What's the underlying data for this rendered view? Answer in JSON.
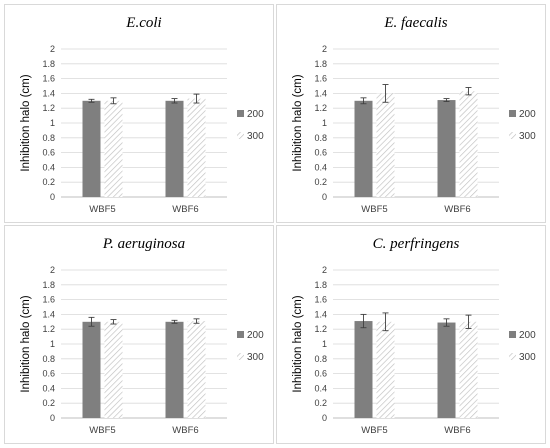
{
  "colors": {
    "s200": "#7f7f7f",
    "s300_hatch": "#bfbfbf",
    "grid": "#d9d9d9",
    "error": "#404040"
  },
  "chart_data": [
    {
      "type": "bar",
      "title": "E.coli",
      "ylabel": "Inhibition halo (cm)",
      "categories": [
        "WBF5",
        "WBF6"
      ],
      "ylim": [
        0,
        2
      ],
      "yticks": [
        "0",
        "0.2",
        "0.4",
        "0.6",
        "0.8",
        "1",
        "1.2",
        "1.4",
        "1.6",
        "1.8",
        "2"
      ],
      "legend_position": "right",
      "grid": true,
      "series": [
        {
          "name": "200",
          "values": [
            1.3,
            1.3
          ],
          "errors": [
            0.02,
            0.03
          ],
          "pattern": "solid"
        },
        {
          "name": "300",
          "values": [
            1.3,
            1.33
          ],
          "errors": [
            0.04,
            0.06
          ],
          "pattern": "hatch"
        }
      ]
    },
    {
      "type": "bar",
      "title": "E. faecalis",
      "ylabel": "Inhibition halo (cm)",
      "categories": [
        "WBF5",
        "WBF6"
      ],
      "ylim": [
        0,
        2
      ],
      "yticks": [
        "0",
        "0.2",
        "0.4",
        "0.6",
        "0.8",
        "1",
        "1.2",
        "1.4",
        "1.6",
        "1.8",
        "2"
      ],
      "legend_position": "right",
      "grid": true,
      "series": [
        {
          "name": "200",
          "values": [
            1.3,
            1.31
          ],
          "errors": [
            0.04,
            0.02
          ],
          "pattern": "solid"
        },
        {
          "name": "300",
          "values": [
            1.4,
            1.43
          ],
          "errors": [
            0.12,
            0.05
          ],
          "pattern": "hatch"
        }
      ]
    },
    {
      "type": "bar",
      "title": "P. aeruginosa",
      "ylabel": "Inhibition halo (cm)",
      "categories": [
        "WBF5",
        "WBF6"
      ],
      "ylim": [
        0,
        2
      ],
      "yticks": [
        "0",
        "0.2",
        "0.4",
        "0.6",
        "0.8",
        "1",
        "1.2",
        "1.4",
        "1.6",
        "1.8",
        "2"
      ],
      "legend_position": "right",
      "grid": true,
      "series": [
        {
          "name": "200",
          "values": [
            1.3,
            1.3
          ],
          "errors": [
            0.06,
            0.02
          ],
          "pattern": "solid"
        },
        {
          "name": "300",
          "values": [
            1.3,
            1.31
          ],
          "errors": [
            0.03,
            0.03
          ],
          "pattern": "hatch"
        }
      ]
    },
    {
      "type": "bar",
      "title": "C. perfringens",
      "ylabel": "Inhibition halo (cm)",
      "categories": [
        "WBF5",
        "WBF6"
      ],
      "ylim": [
        0,
        2
      ],
      "yticks": [
        "0",
        "0.2",
        "0.4",
        "0.6",
        "0.8",
        "1",
        "1.2",
        "1.4",
        "1.6",
        "1.8",
        "2"
      ],
      "legend_position": "right",
      "grid": true,
      "series": [
        {
          "name": "200",
          "values": [
            1.31,
            1.29
          ],
          "errors": [
            0.09,
            0.05
          ],
          "pattern": "solid"
        },
        {
          "name": "300",
          "values": [
            1.3,
            1.3
          ],
          "errors": [
            0.12,
            0.09
          ],
          "pattern": "hatch"
        }
      ]
    }
  ]
}
